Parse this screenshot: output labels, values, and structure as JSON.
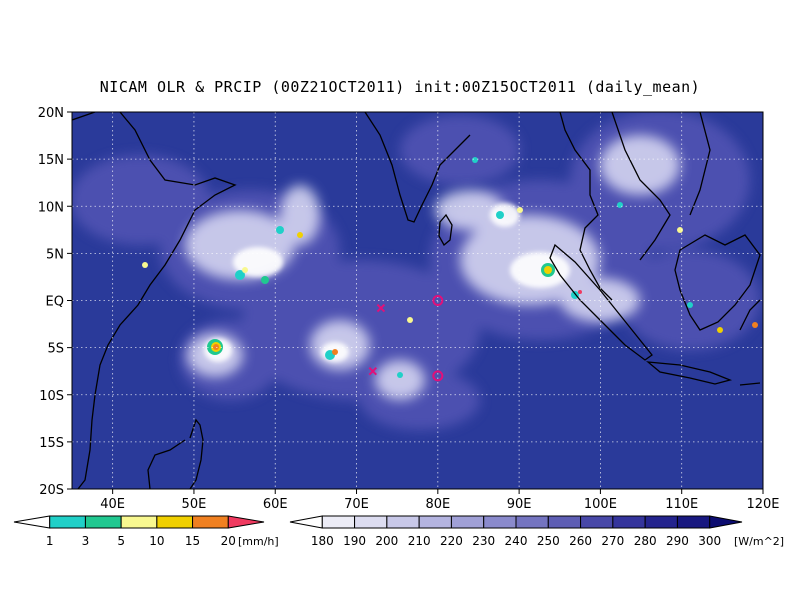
{
  "title": "NICAM OLR & PRCIP (00Z21OCT2011) init:00Z15OCT2011 (daily_mean)",
  "map": {
    "lon_range": [
      35,
      120
    ],
    "lat_range": [
      -20,
      20
    ],
    "lon_ticks": [
      "40E",
      "50E",
      "60E",
      "70E",
      "80E",
      "90E",
      "100E",
      "110E",
      "120E"
    ],
    "lat_ticks": [
      "20N",
      "15N",
      "10N",
      "5N",
      "EQ",
      "5S",
      "10S",
      "15S",
      "20S"
    ],
    "grid": true,
    "markers": [
      {
        "name": "cross-1",
        "symbol": "x",
        "lon": 73,
        "lat": -0.8
      },
      {
        "name": "cross-2",
        "symbol": "x",
        "lon": 72,
        "lat": -7.5
      },
      {
        "name": "circle-1",
        "symbol": "o",
        "lon": 80,
        "lat": 0
      },
      {
        "name": "circle-2",
        "symbol": "o",
        "lon": 80,
        "lat": -8
      }
    ],
    "colors": {
      "ocean_background": "#2a3a9a",
      "cloud_white": "#f4f4ff",
      "marker": "#e0107a",
      "coastline": "#000000"
    }
  },
  "precip_legend": {
    "labels": [
      "1",
      "3",
      "5",
      "10",
      "15",
      "20"
    ],
    "unit": "[mm/h]",
    "colors": [
      "#ffffff",
      "#20d0c8",
      "#20c890",
      "#f8f890",
      "#f0d000",
      "#f08020",
      "#f03a60"
    ]
  },
  "olr_legend": {
    "labels": [
      "180",
      "190",
      "200",
      "210",
      "220",
      "230",
      "240",
      "250",
      "260",
      "270",
      "280",
      "290",
      "300"
    ],
    "unit": "[W/m^2]",
    "colors": [
      "#ffffff",
      "#ececf6",
      "#dcdcf0",
      "#c8c8e8",
      "#b4b4e0",
      "#a0a0d6",
      "#8a8acc",
      "#7474c0",
      "#5e5eb4",
      "#4848a8",
      "#34349c",
      "#24248e",
      "#181880",
      "#0c0c70"
    ]
  }
}
